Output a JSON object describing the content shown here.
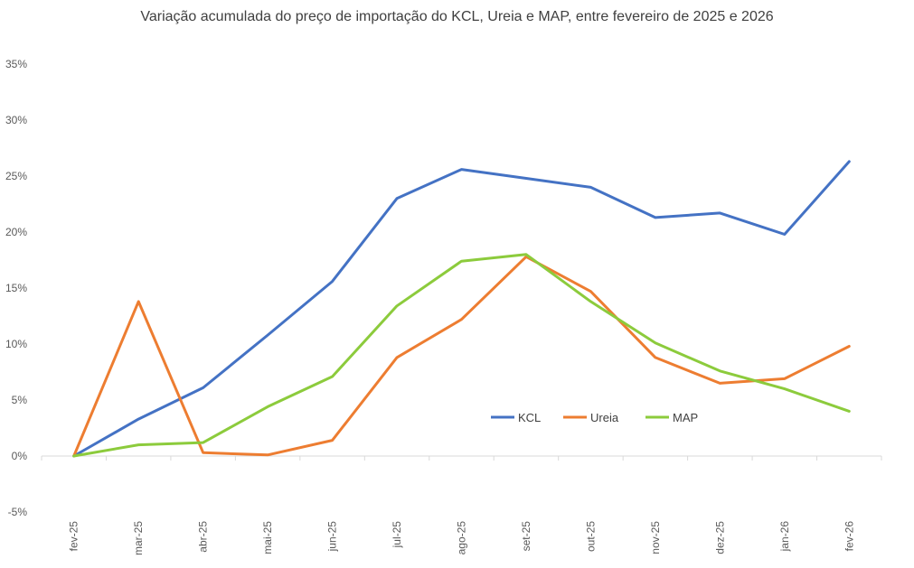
{
  "chart_data": {
    "type": "line",
    "title": "Variação acumulada do preço de importação do KCL, Ureia e MAP, entre fevereiro de 2025 e 2026",
    "categories": [
      "fev-25",
      "mar-25",
      "abr-25",
      "mai-25",
      "jun-25",
      "jul-25",
      "ago-25",
      "set-25",
      "out-25",
      "nov-25",
      "dez-25",
      "jan-26",
      "fev-26"
    ],
    "ylim": [
      -5,
      35
    ],
    "yticks": [
      -5,
      0,
      5,
      10,
      15,
      20,
      25,
      30,
      35
    ],
    "ytick_labels": [
      "-5%",
      "0%",
      "5%",
      "10%",
      "15%",
      "20%",
      "25%",
      "30%",
      "35%"
    ],
    "xlabel": "",
    "ylabel": "",
    "grid": false,
    "legend_position": "inside-lower-right",
    "series": [
      {
        "name": "KCL",
        "color": "#4472C4",
        "values": [
          0,
          3.3,
          6.1,
          10.8,
          15.6,
          23.0,
          25.6,
          24.8,
          24.0,
          21.3,
          21.7,
          19.8,
          26.3
        ]
      },
      {
        "name": "Ureia",
        "color": "#ED7D31",
        "values": [
          0,
          13.8,
          0.3,
          0.1,
          1.4,
          8.8,
          12.2,
          17.8,
          14.7,
          8.8,
          6.5,
          6.9,
          9.8
        ]
      },
      {
        "name": "MAP",
        "color": "#8CCB3C",
        "values": [
          0,
          1.0,
          1.2,
          4.4,
          7.1,
          13.4,
          17.4,
          18.0,
          13.8,
          10.1,
          7.6,
          6.0,
          4.0
        ]
      }
    ]
  }
}
